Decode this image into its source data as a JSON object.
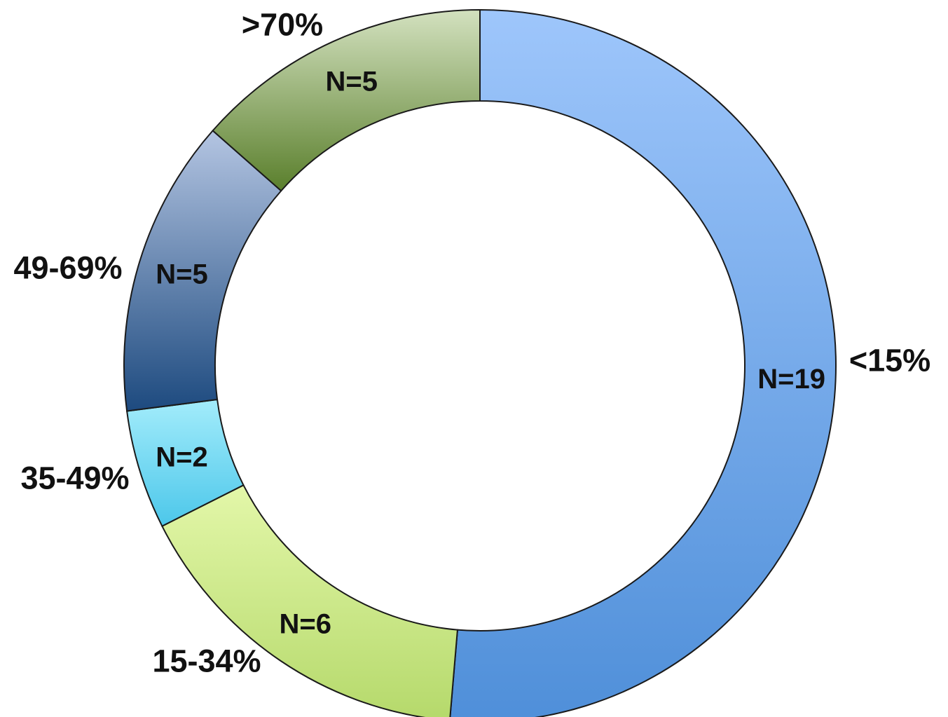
{
  "chart_data": {
    "type": "pie",
    "variant": "donut",
    "direction": "clockwise",
    "start": "top",
    "legend": "none",
    "slices": [
      {
        "category": "<15%",
        "count_label": "N=19",
        "value": 19,
        "color_top": "#9ec6fb",
        "color_bottom": "#4f8fd9"
      },
      {
        "category": "15-34%",
        "count_label": "N=6",
        "value": 6,
        "color_top": "#e3f7a9",
        "color_bottom": "#b5d96b"
      },
      {
        "category": "35-49%",
        "count_label": "N=2",
        "value": 2,
        "color_top": "#a3ecfb",
        "color_bottom": "#4cc7ea"
      },
      {
        "category": "49-69%",
        "count_label": "N=5",
        "value": 5,
        "color_top": "#b4c5e2",
        "color_bottom": "#1d4a7f"
      },
      {
        "category": ">70%",
        "count_label": "N=5",
        "value": 5,
        "color_top": "#d3e1bf",
        "color_bottom": "#5a7f2c"
      }
    ],
    "outline_color": "#1a1a1a"
  }
}
